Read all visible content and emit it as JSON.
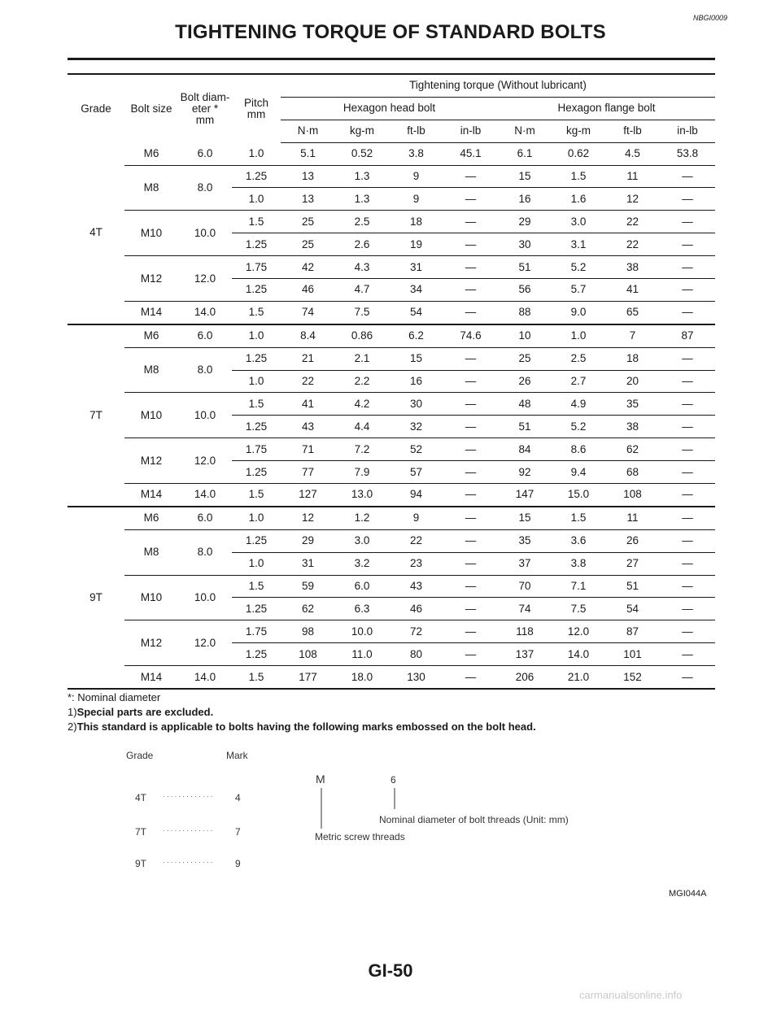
{
  "header": {
    "code": "NBGI0009",
    "title": "TIGHTENING TORQUE OF STANDARD BOLTS"
  },
  "table": {
    "headers": {
      "grade": "Grade",
      "bolt_size": "Bolt size",
      "bolt_diameter": "Bolt diam-\neter *\nmm",
      "pitch": "Pitch\nmm",
      "torque": "Tightening torque (Without lubricant)",
      "hex_head": "Hexagon head bolt",
      "hex_flange": "Hexagon flange bolt",
      "units": [
        "N·m",
        "kg-m",
        "ft-lb",
        "in-lb",
        "N·m",
        "kg-m",
        "ft-lb",
        "in-lb"
      ]
    },
    "grades": [
      {
        "grade": "4T",
        "sizes": [
          {
            "size": "M6",
            "diameter": "6.0",
            "rows": [
              [
                "1.0",
                "5.1",
                "0.52",
                "3.8",
                "45.1",
                "6.1",
                "0.62",
                "4.5",
                "53.8"
              ]
            ]
          },
          {
            "size": "M8",
            "diameter": "8.0",
            "rows": [
              [
                "1.25",
                "13",
                "1.3",
                "9",
                "—",
                "15",
                "1.5",
                "11",
                "—"
              ],
              [
                "1.0",
                "13",
                "1.3",
                "9",
                "—",
                "16",
                "1.6",
                "12",
                "—"
              ]
            ]
          },
          {
            "size": "M10",
            "diameter": "10.0",
            "rows": [
              [
                "1.5",
                "25",
                "2.5",
                "18",
                "—",
                "29",
                "3.0",
                "22",
                "—"
              ],
              [
                "1.25",
                "25",
                "2.6",
                "19",
                "—",
                "30",
                "3.1",
                "22",
                "—"
              ]
            ]
          },
          {
            "size": "M12",
            "diameter": "12.0",
            "rows": [
              [
                "1.75",
                "42",
                "4.3",
                "31",
                "—",
                "51",
                "5.2",
                "38",
                "—"
              ],
              [
                "1.25",
                "46",
                "4.7",
                "34",
                "—",
                "56",
                "5.7",
                "41",
                "—"
              ]
            ]
          },
          {
            "size": "M14",
            "diameter": "14.0",
            "rows": [
              [
                "1.5",
                "74",
                "7.5",
                "54",
                "—",
                "88",
                "9.0",
                "65",
                "—"
              ]
            ]
          }
        ]
      },
      {
        "grade": "7T",
        "sizes": [
          {
            "size": "M6",
            "diameter": "6.0",
            "rows": [
              [
                "1.0",
                "8.4",
                "0.86",
                "6.2",
                "74.6",
                "10",
                "1.0",
                "7",
                "87"
              ]
            ]
          },
          {
            "size": "M8",
            "diameter": "8.0",
            "rows": [
              [
                "1.25",
                "21",
                "2.1",
                "15",
                "—",
                "25",
                "2.5",
                "18",
                "—"
              ],
              [
                "1.0",
                "22",
                "2.2",
                "16",
                "—",
                "26",
                "2.7",
                "20",
                "—"
              ]
            ]
          },
          {
            "size": "M10",
            "diameter": "10.0",
            "rows": [
              [
                "1.5",
                "41",
                "4.2",
                "30",
                "—",
                "48",
                "4.9",
                "35",
                "—"
              ],
              [
                "1.25",
                "43",
                "4.4",
                "32",
                "—",
                "51",
                "5.2",
                "38",
                "—"
              ]
            ]
          },
          {
            "size": "M12",
            "diameter": "12.0",
            "rows": [
              [
                "1.75",
                "71",
                "7.2",
                "52",
                "—",
                "84",
                "8.6",
                "62",
                "—"
              ],
              [
                "1.25",
                "77",
                "7.9",
                "57",
                "—",
                "92",
                "9.4",
                "68",
                "—"
              ]
            ]
          },
          {
            "size": "M14",
            "diameter": "14.0",
            "rows": [
              [
                "1.5",
                "127",
                "13.0",
                "94",
                "—",
                "147",
                "15.0",
                "108",
                "—"
              ]
            ]
          }
        ]
      },
      {
        "grade": "9T",
        "sizes": [
          {
            "size": "M6",
            "diameter": "6.0",
            "rows": [
              [
                "1.0",
                "12",
                "1.2",
                "9",
                "—",
                "15",
                "1.5",
                "11",
                "—"
              ]
            ]
          },
          {
            "size": "M8",
            "diameter": "8.0",
            "rows": [
              [
                "1.25",
                "29",
                "3.0",
                "22",
                "—",
                "35",
                "3.6",
                "26",
                "—"
              ],
              [
                "1.0",
                "31",
                "3.2",
                "23",
                "—",
                "37",
                "3.8",
                "27",
                "—"
              ]
            ]
          },
          {
            "size": "M10",
            "diameter": "10.0",
            "rows": [
              [
                "1.5",
                "59",
                "6.0",
                "43",
                "—",
                "70",
                "7.1",
                "51",
                "—"
              ],
              [
                "1.25",
                "62",
                "6.3",
                "46",
                "—",
                "74",
                "7.5",
                "54",
                "—"
              ]
            ]
          },
          {
            "size": "M12",
            "diameter": "12.0",
            "rows": [
              [
                "1.75",
                "98",
                "10.0",
                "72",
                "—",
                "118",
                "12.0",
                "87",
                "—"
              ],
              [
                "1.25",
                "108",
                "11.0",
                "80",
                "—",
                "137",
                "14.0",
                "101",
                "—"
              ]
            ]
          },
          {
            "size": "M14",
            "diameter": "14.0",
            "rows": [
              [
                "1.5",
                "177",
                "18.0",
                "130",
                "—",
                "206",
                "21.0",
                "152",
                "—"
              ]
            ]
          }
        ]
      }
    ]
  },
  "notes": {
    "footnote": "*: Nominal diameter",
    "items": [
      {
        "num": "1)",
        "text": "Special parts are excluded."
      },
      {
        "num": "2)",
        "text": "This standard is applicable to bolts having the following marks embossed on the bolt head."
      }
    ]
  },
  "figure": {
    "grade_header": "Grade",
    "mark_header": "Mark",
    "dots": "· · · · · · · · · · · · ·",
    "marks": [
      {
        "grade": "4T",
        "mark": "4"
      },
      {
        "grade": "7T",
        "mark": "7"
      },
      {
        "grade": "9T",
        "mark": "9"
      }
    ],
    "letter_m": "M",
    "digit_6": "6",
    "nominal_label": "Nominal diameter of bolt threads (Unit: mm)",
    "metric_label": "Metric screw threads",
    "code": "MGI044A"
  },
  "footer": {
    "page": "GI-50",
    "watermark": "carmanualsonline.info"
  }
}
